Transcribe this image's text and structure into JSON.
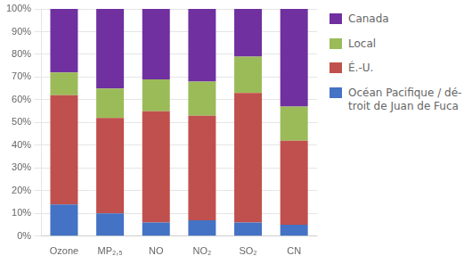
{
  "chart_data": {
    "type": "bar",
    "stacked": true,
    "categories": [
      "Ozone",
      "MP₂,₅",
      "NO",
      "NO₂",
      "SO₂",
      "CN"
    ],
    "series": [
      {
        "name": "Océan Pacifique / dé-\ntroit de Juan de Fuca",
        "color": "#4472C4",
        "values": [
          14,
          10,
          6,
          7,
          6,
          5
        ]
      },
      {
        "name": "É.-U.",
        "color": "#C0504D",
        "values": [
          48,
          42,
          49,
          46,
          57,
          37
        ]
      },
      {
        "name": "Local",
        "color": "#9BBB59",
        "values": [
          10,
          13,
          14,
          15,
          16,
          15
        ]
      },
      {
        "name": "Canada",
        "color": "#7030A0",
        "values": [
          28,
          35,
          31,
          32,
          21,
          43
        ]
      }
    ],
    "ylim": [
      0,
      100
    ],
    "yticks": [
      {
        "value": 0,
        "label": "0%"
      },
      {
        "value": 10,
        "label": "10%"
      },
      {
        "value": 20,
        "label": "20%"
      },
      {
        "value": 30,
        "label": "30%"
      },
      {
        "value": 40,
        "label": "40%"
      },
      {
        "value": 50,
        "label": "50%"
      },
      {
        "value": 60,
        "label": "60%"
      },
      {
        "value": 70,
        "label": "70%"
      },
      {
        "value": 80,
        "label": "80%"
      },
      {
        "value": 90,
        "label": "90%"
      },
      {
        "value": 100,
        "label": "100%"
      }
    ],
    "grid": true,
    "legend": "right"
  }
}
